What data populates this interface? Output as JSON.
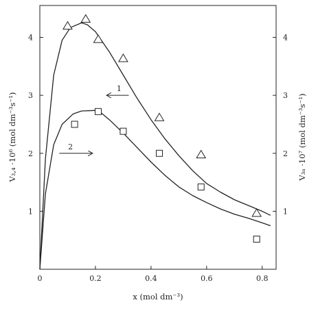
{
  "chart_data": {
    "type": "scatter",
    "xlabel": "x (mol dm⁻³)",
    "ylabel_left": "V₃,₄ ·10⁶ (mol dm⁻³s⁻¹)",
    "ylabel_right": "V₃ₐ ·10⁷ (mol dm⁻³s⁻¹)",
    "xlim": [
      0,
      0.85
    ],
    "ylim": [
      0,
      4.55
    ],
    "x_ticks": [
      0,
      0.2,
      0.4,
      0.6,
      0.8
    ],
    "x_tick_labels": [
      "0",
      "0.2",
      "0.4",
      "0.6",
      "0.8"
    ],
    "y_ticks": [
      1,
      2,
      3,
      4
    ],
    "y_tick_labels_left": [
      "1",
      "2",
      "3",
      "4"
    ],
    "y_tick_labels_right": [
      "1",
      "2",
      "3",
      "4"
    ],
    "grid": false,
    "series": [
      {
        "marker": "triangle",
        "points": [
          [
            0.1,
            4.2
          ],
          [
            0.165,
            4.32
          ],
          [
            0.21,
            3.97
          ],
          [
            0.3,
            3.64
          ],
          [
            0.43,
            2.62
          ],
          [
            0.58,
            1.98
          ],
          [
            0.78,
            0.97
          ]
        ],
        "curve": [
          [
            0,
            0
          ],
          [
            0.02,
            1.9
          ],
          [
            0.05,
            3.35
          ],
          [
            0.08,
            3.95
          ],
          [
            0.11,
            4.17
          ],
          [
            0.15,
            4.25
          ],
          [
            0.17,
            4.22
          ],
          [
            0.2,
            4.1
          ],
          [
            0.25,
            3.75
          ],
          [
            0.3,
            3.35
          ],
          [
            0.35,
            2.95
          ],
          [
            0.4,
            2.58
          ],
          [
            0.45,
            2.25
          ],
          [
            0.5,
            1.96
          ],
          [
            0.55,
            1.7
          ],
          [
            0.6,
            1.48
          ],
          [
            0.65,
            1.33
          ],
          [
            0.7,
            1.2
          ],
          [
            0.75,
            1.1
          ],
          [
            0.8,
            1.0
          ],
          [
            0.83,
            0.93
          ]
        ]
      },
      {
        "marker": "square",
        "points": [
          [
            0.125,
            2.5
          ],
          [
            0.21,
            2.72
          ],
          [
            0.3,
            2.38
          ],
          [
            0.43,
            2.0
          ],
          [
            0.58,
            1.42
          ],
          [
            0.78,
            0.52
          ]
        ],
        "curve": [
          [
            0,
            0
          ],
          [
            0.02,
            1.3
          ],
          [
            0.05,
            2.15
          ],
          [
            0.08,
            2.5
          ],
          [
            0.12,
            2.68
          ],
          [
            0.15,
            2.73
          ],
          [
            0.2,
            2.74
          ],
          [
            0.22,
            2.7
          ],
          [
            0.25,
            2.58
          ],
          [
            0.3,
            2.35
          ],
          [
            0.35,
            2.1
          ],
          [
            0.4,
            1.85
          ],
          [
            0.45,
            1.62
          ],
          [
            0.5,
            1.42
          ],
          [
            0.55,
            1.27
          ],
          [
            0.6,
            1.15
          ],
          [
            0.65,
            1.04
          ],
          [
            0.7,
            0.95
          ],
          [
            0.75,
            0.88
          ],
          [
            0.8,
            0.8
          ],
          [
            0.83,
            0.75
          ]
        ]
      }
    ],
    "annotations": [
      {
        "label": "1",
        "arrow": "left",
        "x": 0.32,
        "y": 3.0,
        "x_to": 0.24
      },
      {
        "label": "2",
        "arrow": "right",
        "x": 0.07,
        "y": 2.0,
        "x_to": 0.19
      }
    ]
  }
}
